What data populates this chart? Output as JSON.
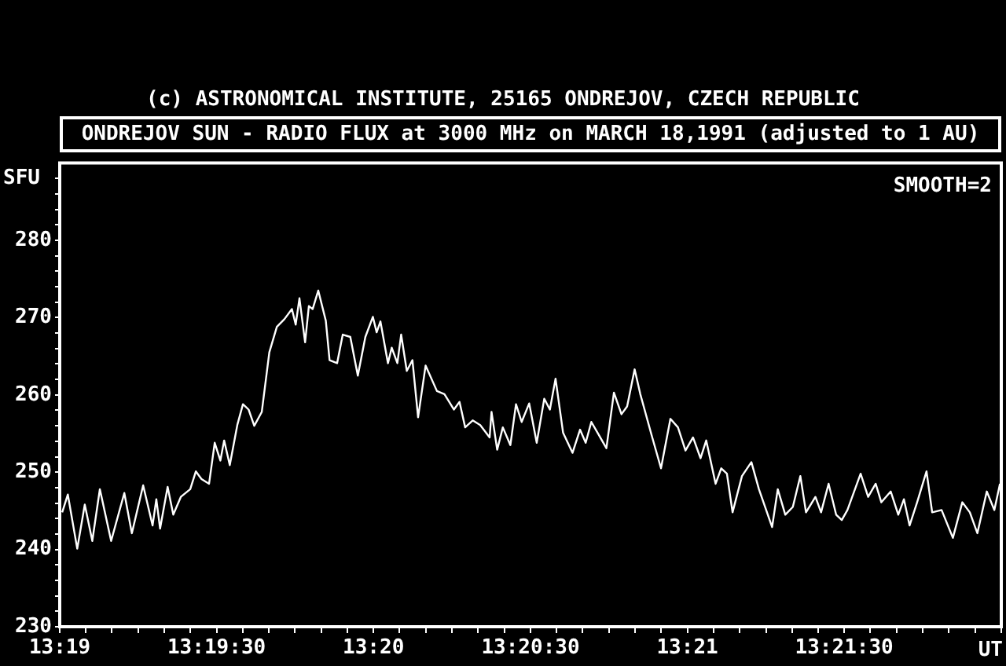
{
  "chart_data": {
    "type": "line",
    "title": "ONDREJOV SUN - RADIO FLUX at 3000 MHz on MARCH 18,1991 (adjusted to 1 AU)",
    "ylabel": "SFU",
    "xlabel": "UT",
    "annotations": [
      "(c) ASTRONOMICAL INSTITUTE, 25165 ONDREJOV, CZECH REPUBLIC",
      "SMOOTH=2"
    ],
    "color": "#ffffff",
    "x": [
      13.3168,
      13.3171,
      13.3176,
      13.318,
      13.3184,
      13.3188,
      13.3194,
      13.3201,
      13.3205,
      13.3211,
      13.3216,
      13.3218,
      13.322,
      13.3224,
      13.3227,
      13.3231,
      13.3236,
      13.3239,
      13.3242,
      13.3246,
      13.3249,
      13.3252,
      13.3254,
      13.3257,
      13.3261,
      13.3264,
      13.3267,
      13.327,
      13.3274,
      13.3278,
      13.3282,
      13.3286,
      13.329,
      13.3292,
      13.3294,
      13.3297,
      13.3299,
      13.3301,
      13.3304,
      13.3308,
      13.331,
      13.3314,
      13.3317,
      13.3321,
      13.3325,
      13.3329,
      13.3333,
      13.3335,
      13.3337,
      13.3341,
      13.3343,
      13.3346,
      13.3348,
      13.3351,
      13.3354,
      13.3357,
      13.3361,
      13.3367,
      13.3371,
      13.3376,
      13.3379,
      13.3382,
      13.3386,
      13.339,
      13.3395,
      13.3396,
      13.3399,
      13.3402,
      13.3406,
      13.3409,
      13.3412,
      13.3416,
      13.342,
      13.3424,
      13.3427,
      13.343,
      13.3434,
      13.3439,
      13.3443,
      13.3446,
      13.3449,
      13.3453,
      13.3457,
      13.3461,
      13.3465,
      13.3468,
      13.3472,
      13.3475,
      13.3481,
      13.3486,
      13.3491,
      13.3495,
      13.3499,
      13.3503,
      13.3507,
      13.351,
      13.3515,
      13.3518,
      13.3521,
      13.3524,
      13.3529,
      13.3534,
      13.3538,
      13.3545,
      13.3548,
      13.3552,
      13.3556,
      13.356,
      13.3563,
      13.3568,
      13.3571,
      13.3575,
      13.3579,
      13.3582,
      13.3585,
      13.3592,
      13.3596,
      13.36,
      13.3603,
      13.3608,
      13.3612,
      13.3615,
      13.3618,
      13.3622,
      13.3627,
      13.363,
      13.3635,
      13.3641,
      13.3646,
      13.365,
      13.3654,
      13.3659,
      13.3663,
      13.3666
    ],
    "values": [
      244.8,
      247.1,
      240.1,
      245.8,
      241.1,
      247.8,
      241.1,
      247.3,
      242.1,
      248.3,
      243.1,
      246.5,
      242.7,
      248.1,
      244.5,
      246.8,
      247.8,
      250.1,
      249.1,
      248.5,
      253.8,
      251.5,
      254.1,
      250.9,
      256.1,
      258.8,
      258.1,
      256.0,
      257.8,
      265.5,
      268.8,
      269.8,
      271.1,
      269.1,
      272.5,
      266.8,
      271.5,
      271.1,
      273.5,
      269.6,
      264.5,
      264.1,
      267.8,
      267.5,
      262.5,
      267.5,
      270.1,
      268.1,
      269.5,
      264.1,
      266.1,
      264.1,
      267.8,
      263.1,
      264.5,
      257.1,
      263.8,
      260.5,
      260.1,
      258.1,
      259.1,
      255.8,
      256.7,
      256.1,
      254.5,
      257.8,
      252.9,
      255.8,
      253.5,
      258.8,
      256.5,
      258.9,
      253.8,
      259.5,
      258.1,
      262.1,
      255.1,
      252.5,
      255.5,
      253.8,
      256.5,
      254.8,
      253.1,
      260.3,
      257.5,
      258.5,
      263.3,
      260.1,
      254.8,
      250.5,
      256.9,
      255.8,
      252.8,
      254.5,
      251.8,
      254.1,
      248.5,
      250.5,
      249.8,
      244.8,
      249.5,
      251.3,
      247.8,
      242.9,
      247.8,
      244.5,
      245.5,
      249.5,
      244.8,
      246.8,
      244.8,
      248.5,
      244.5,
      243.8,
      245.1,
      249.8,
      246.8,
      248.5,
      246.1,
      247.5,
      244.5,
      246.5,
      243.1,
      246.1,
      250.1,
      244.8,
      245.1,
      241.5,
      246.1,
      244.8,
      242.1,
      247.5,
      245.1,
      248.5
    ],
    "xlim": [
      13.31667,
      13.36667
    ],
    "xticks": [
      {
        "value": 13.31667,
        "label": "13:19"
      },
      {
        "value": 13.31806,
        "label": null
      },
      {
        "value": 13.31944,
        "label": null
      },
      {
        "value": 13.32083,
        "label": null
      },
      {
        "value": 13.32222,
        "label": null
      },
      {
        "value": 13.32361,
        "label": null
      },
      {
        "value": 13.325,
        "label": "13:19:30"
      },
      {
        "value": 13.32639,
        "label": null
      },
      {
        "value": 13.32778,
        "label": null
      },
      {
        "value": 13.32917,
        "label": null
      },
      {
        "value": 13.33056,
        "label": null
      },
      {
        "value": 13.33194,
        "label": null
      },
      {
        "value": 13.33333,
        "label": "13:20"
      },
      {
        "value": 13.33472,
        "label": null
      },
      {
        "value": 13.33611,
        "label": null
      },
      {
        "value": 13.3375,
        "label": null
      },
      {
        "value": 13.33889,
        "label": null
      },
      {
        "value": 13.34028,
        "label": null
      },
      {
        "value": 13.34167,
        "label": "13:20:30"
      },
      {
        "value": 13.34306,
        "label": null
      },
      {
        "value": 13.34444,
        "label": null
      },
      {
        "value": 13.34583,
        "label": null
      },
      {
        "value": 13.34722,
        "label": null
      },
      {
        "value": 13.34861,
        "label": null
      },
      {
        "value": 13.35,
        "label": "13:21"
      },
      {
        "value": 13.35139,
        "label": null
      },
      {
        "value": 13.35278,
        "label": null
      },
      {
        "value": 13.35417,
        "label": null
      },
      {
        "value": 13.35556,
        "label": null
      },
      {
        "value": 13.35694,
        "label": null
      },
      {
        "value": 13.35833,
        "label": "13:21:30"
      },
      {
        "value": 13.35972,
        "label": null
      },
      {
        "value": 13.36111,
        "label": null
      },
      {
        "value": 13.3625,
        "label": null
      },
      {
        "value": 13.36389,
        "label": null
      },
      {
        "value": 13.36528,
        "label": null
      },
      {
        "value": 13.36667,
        "label": null
      }
    ],
    "ylim": [
      230,
      290
    ],
    "yticks": [
      230,
      {
        "value": 232,
        "label": null
      },
      {
        "value": 234,
        "label": null
      },
      {
        "value": 236,
        "label": null
      },
      {
        "value": 238,
        "label": null
      },
      240,
      {
        "value": 242,
        "label": null
      },
      {
        "value": 244,
        "label": null
      },
      {
        "value": 246,
        "label": null
      },
      {
        "value": 248,
        "label": null
      },
      250,
      {
        "value": 252,
        "label": null
      },
      {
        "value": 254,
        "label": null
      },
      {
        "value": 256,
        "label": null
      },
      {
        "value": 258,
        "label": null
      },
      260,
      {
        "value": 262,
        "label": null
      },
      {
        "value": 264,
        "label": null
      },
      {
        "value": 266,
        "label": null
      },
      {
        "value": 268,
        "label": null
      },
      270,
      {
        "value": 272,
        "label": null
      },
      {
        "value": 274,
        "label": null
      },
      {
        "value": 276,
        "label": null
      },
      {
        "value": 278,
        "label": null
      },
      280,
      {
        "value": 282,
        "label": null
      },
      {
        "value": 284,
        "label": null
      },
      {
        "value": 286,
        "label": null
      },
      {
        "value": 288,
        "label": null
      }
    ]
  }
}
